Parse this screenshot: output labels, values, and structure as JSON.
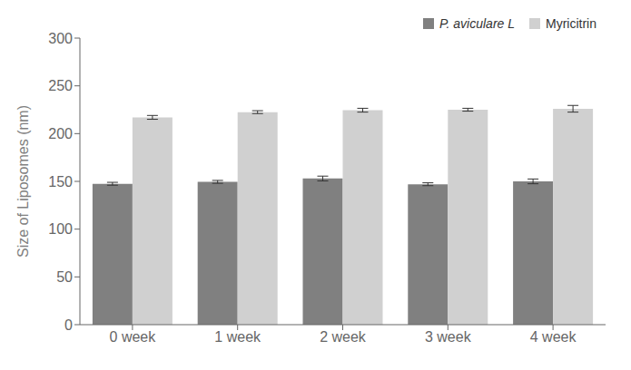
{
  "chart_data": {
    "type": "bar",
    "categories": [
      "0 week",
      "1 week",
      "2 week",
      "3 week",
      "4 week"
    ],
    "series": [
      {
        "name": "P. aviculare L",
        "color": "#808080",
        "values": [
          147.5,
          149.5,
          153.0,
          147.0,
          150.0
        ],
        "errors": [
          1.5,
          1.5,
          2.5,
          1.5,
          2.5
        ]
      },
      {
        "name": "Myricitrin",
        "color": "#d0d0d0",
        "values": [
          217.0,
          222.5,
          224.5,
          225.0,
          226.0
        ],
        "errors": [
          2.0,
          1.5,
          2.0,
          1.5,
          3.5
        ]
      }
    ],
    "ylabel": "Size of Liposomes (nm)",
    "ylim": [
      0,
      300
    ],
    "yticks": [
      0,
      50,
      100,
      150,
      200,
      250,
      300
    ],
    "grid": false,
    "legend": "upper right"
  }
}
